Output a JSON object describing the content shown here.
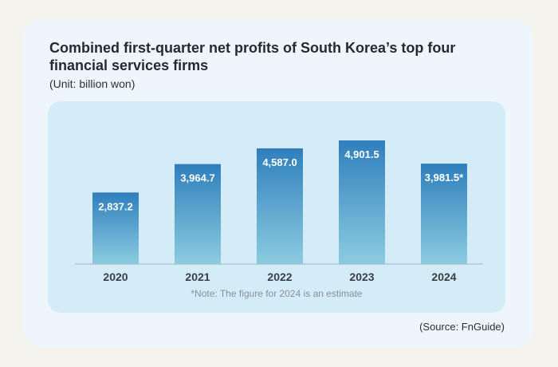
{
  "chart_data": {
    "type": "bar",
    "title": "Combined first-quarter net profits of South Korea’s top four financial services firms",
    "subtitle": "(Unit: billion won)",
    "categories": [
      "2020",
      "2021",
      "2022",
      "2023",
      "2024"
    ],
    "values": [
      2837.2,
      3964.7,
      4587.0,
      4901.5,
      3981.5
    ],
    "value_labels": [
      "2,837.2",
      "3,964.7",
      "4,587.0",
      "4,901.5",
      "3,981.5*"
    ],
    "xlabel": "",
    "ylabel": "",
    "ylim": [
      0,
      5200
    ],
    "grid": false,
    "legend": "none",
    "note": "*Note: The figure for 2024 is an estimate",
    "source": "(Source: FnGuide)",
    "colors": {
      "bar_top": "#2f7fbd",
      "bar_bottom": "#8ccce0",
      "panel": "#d3ecf8",
      "card": "#eef6fb",
      "background": "#f4f3ee"
    }
  }
}
